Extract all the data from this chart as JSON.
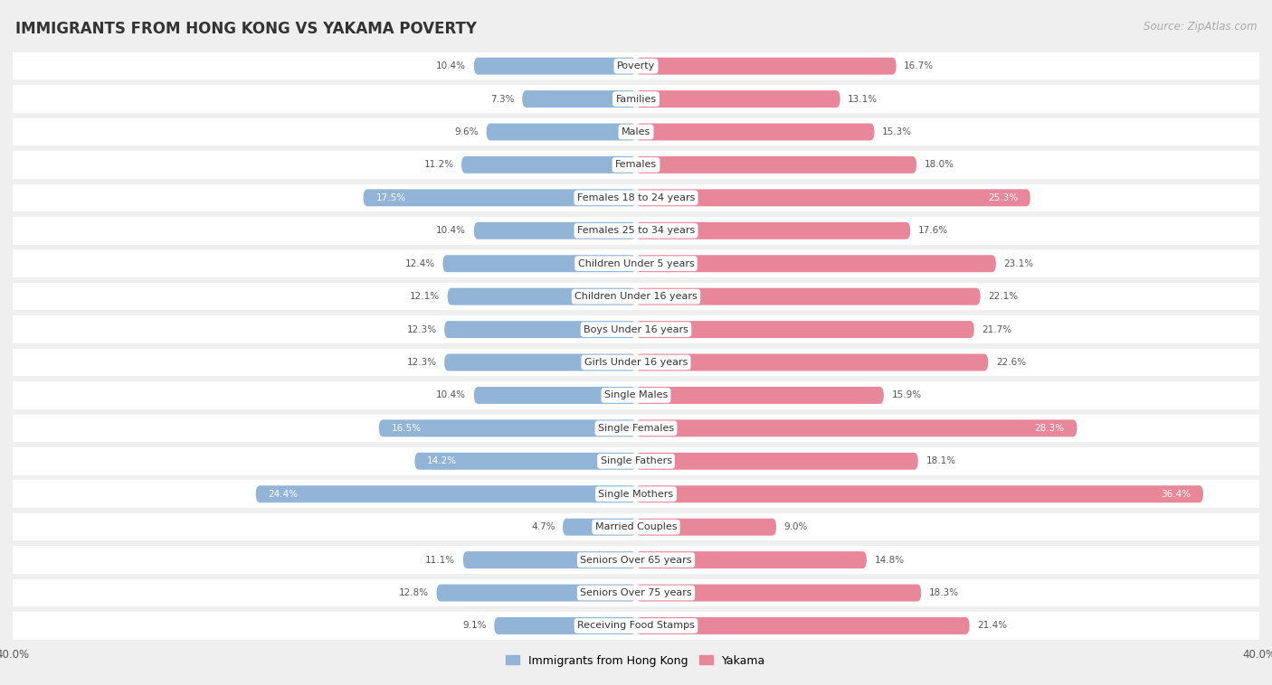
{
  "title": "IMMIGRANTS FROM HONG KONG VS YAKAMA POVERTY",
  "source": "Source: ZipAtlas.com",
  "categories": [
    "Poverty",
    "Families",
    "Males",
    "Females",
    "Females 18 to 24 years",
    "Females 25 to 34 years",
    "Children Under 5 years",
    "Children Under 16 years",
    "Boys Under 16 years",
    "Girls Under 16 years",
    "Single Males",
    "Single Females",
    "Single Fathers",
    "Single Mothers",
    "Married Couples",
    "Seniors Over 65 years",
    "Seniors Over 75 years",
    "Receiving Food Stamps"
  ],
  "left_values": [
    10.4,
    7.3,
    9.6,
    11.2,
    17.5,
    10.4,
    12.4,
    12.1,
    12.3,
    12.3,
    10.4,
    16.5,
    14.2,
    24.4,
    4.7,
    11.1,
    12.8,
    9.1
  ],
  "right_values": [
    16.7,
    13.1,
    15.3,
    18.0,
    25.3,
    17.6,
    23.1,
    22.1,
    21.7,
    22.6,
    15.9,
    28.3,
    18.1,
    36.4,
    9.0,
    14.8,
    18.3,
    21.4
  ],
  "left_color": "#92b4d7",
  "right_color": "#e8879a",
  "left_label": "Immigrants from Hong Kong",
  "right_label": "Yakama",
  "xlim": 40.0,
  "background_color": "#efefef",
  "bar_bg_color": "#ffffff",
  "title_fontsize": 12,
  "source_fontsize": 8.5,
  "label_fontsize": 8,
  "value_fontsize": 7.5,
  "inside_value_fontsize": 7.5
}
